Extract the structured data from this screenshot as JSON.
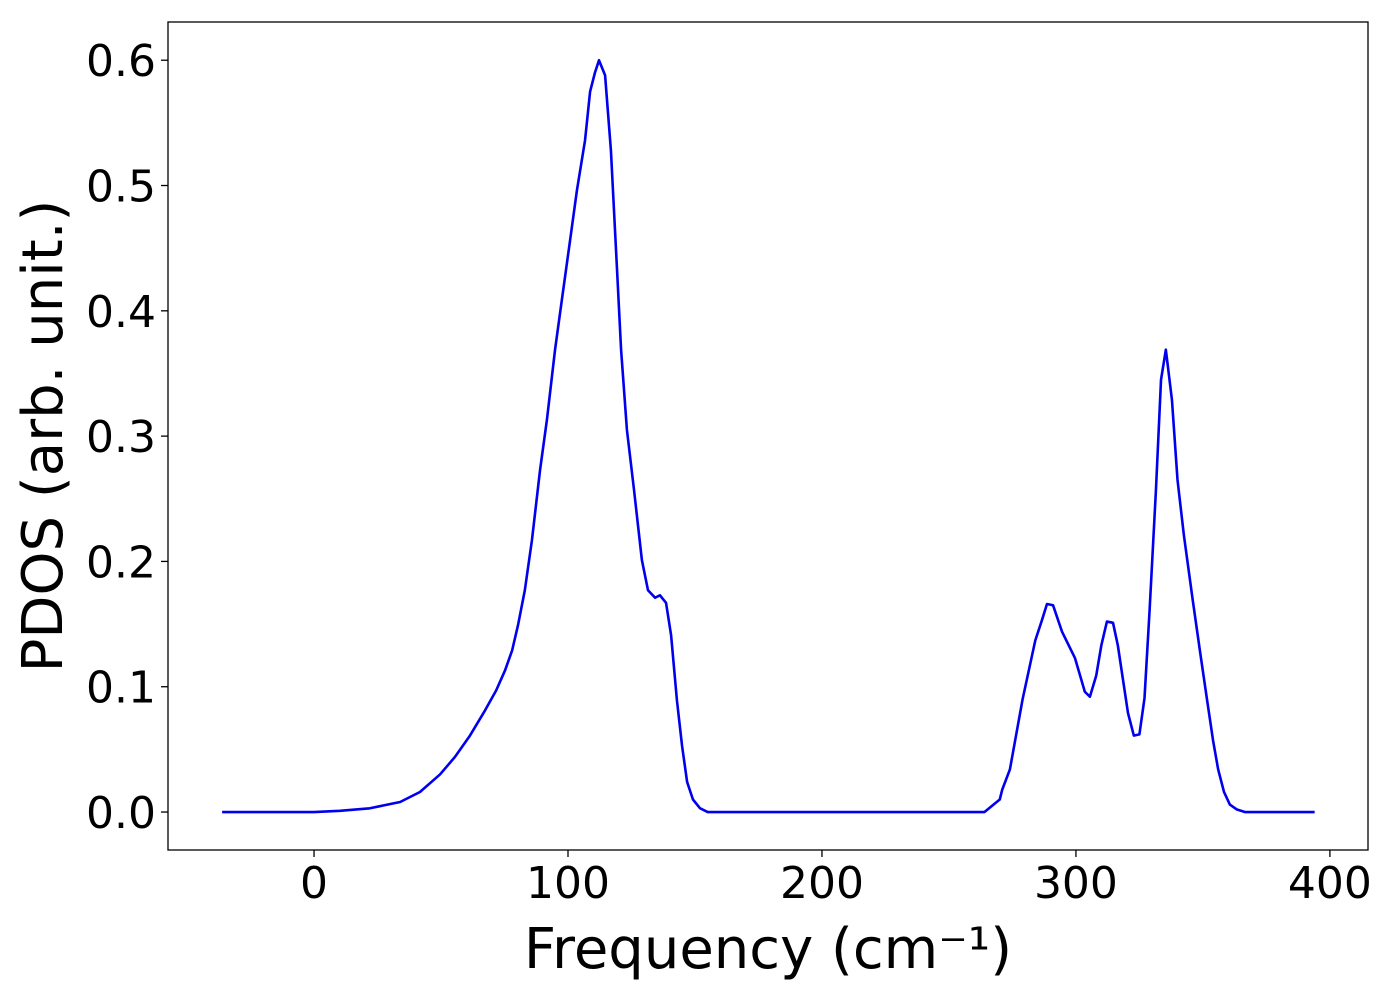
{
  "chart_data": {
    "type": "line",
    "x_label": "Frequency (cm⁻¹)",
    "y_label": "PDOS (arb. unit.)",
    "color": "#0000ee",
    "x": [
      -36.2,
      0,
      10.2,
      22,
      33.9,
      41.7,
      49.6,
      55.5,
      61.4,
      67.3,
      71.7,
      75.2,
      78,
      80.3,
      83,
      85.8,
      89,
      91.7,
      94.9,
      97.6,
      100.8,
      103.5,
      106.7,
      108.7,
      110.6,
      112.2,
      114.6,
      116.9,
      119.3,
      120.9,
      123.2,
      126,
      129.1,
      131.5,
      134.3,
      136.2,
      138.6,
      140.6,
      142.9,
      144.9,
      146.9,
      149.2,
      152,
      155,
      264,
      270,
      271,
      274,
      279,
      284,
      286.6,
      288.6,
      291,
      294.5,
      299.6,
      303.5,
      305.5,
      308,
      310,
      312.2,
      314.6,
      316.5,
      320.5,
      322.8,
      325,
      327,
      329,
      331.5,
      333.5,
      335.4,
      337.8,
      340,
      342.5,
      346,
      348.8,
      351.6,
      354,
      356,
      358.3,
      360.6,
      363.4,
      366.5,
      394
    ],
    "values": [
      0,
      0,
      0.001,
      0.003,
      0.008,
      0.016,
      0.03,
      0.044,
      0.061,
      0.081,
      0.097,
      0.113,
      0.129,
      0.149,
      0.177,
      0.217,
      0.273,
      0.313,
      0.369,
      0.409,
      0.456,
      0.496,
      0.536,
      0.575,
      0.59,
      0.6,
      0.588,
      0.528,
      0.433,
      0.369,
      0.305,
      0.257,
      0.201,
      0.177,
      0.171,
      0.173,
      0.167,
      0.141,
      0.089,
      0.053,
      0.024,
      0.01,
      0.003,
      0,
      0,
      0.01,
      0.018,
      0.034,
      0.09,
      0.137,
      0.153,
      0.166,
      0.165,
      0.144,
      0.123,
      0.096,
      0.092,
      0.109,
      0.133,
      0.152,
      0.151,
      0.133,
      0.079,
      0.061,
      0.062,
      0.091,
      0.161,
      0.257,
      0.345,
      0.369,
      0.329,
      0.265,
      0.221,
      0.169,
      0.129,
      0.09,
      0.057,
      0.034,
      0.016,
      0.006,
      0.002,
      0,
      0
    ],
    "xlim": [
      -57.5,
      415
    ],
    "ylim": [
      -0.0303,
      0.6305
    ],
    "xticks": [
      0,
      100,
      200,
      300,
      400
    ],
    "yticks": [
      {
        "value": 0,
        "label": "0.0"
      },
      0.1,
      0.2,
      0.3,
      0.4,
      0.5,
      0.6
    ]
  }
}
